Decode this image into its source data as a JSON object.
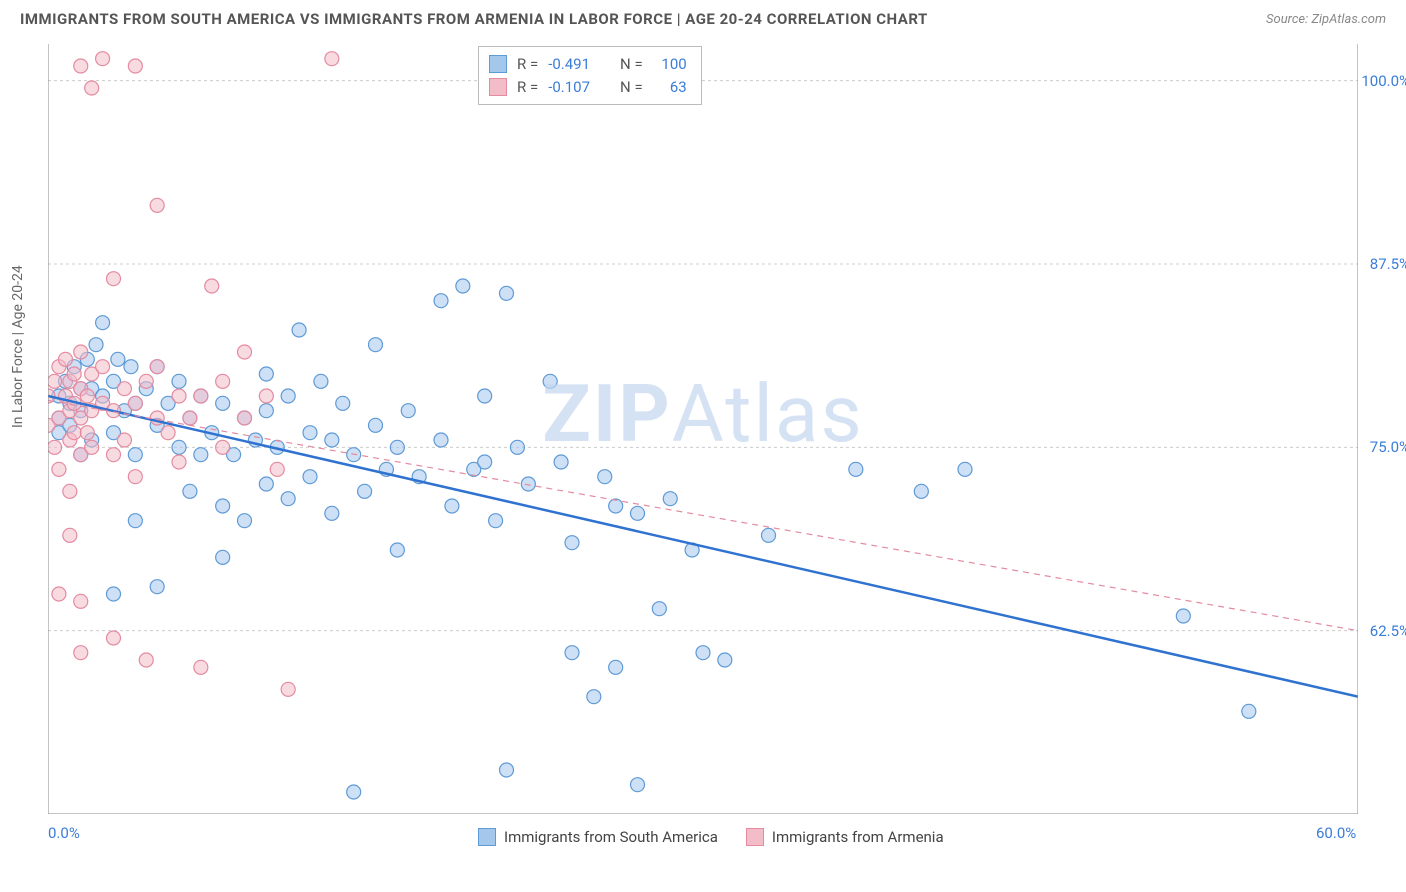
{
  "title": "IMMIGRANTS FROM SOUTH AMERICA VS IMMIGRANTS FROM ARMENIA IN LABOR FORCE | AGE 20-24 CORRELATION CHART",
  "source_label": "Source:",
  "source_value": "ZipAtlas.com",
  "y_axis_label": "In Labor Force | Age 20-24",
  "watermark_prefix": "ZIP",
  "watermark_suffix": "Atlas",
  "chart": {
    "type": "scatter",
    "xlim": [
      0,
      60
    ],
    "ylim": [
      50,
      102.5
    ],
    "x_ticks": [
      {
        "v": 0,
        "label": "0.0%"
      },
      {
        "v": 60,
        "label": "60.0%"
      }
    ],
    "y_ticks": [
      {
        "v": 62.5,
        "label": "62.5%"
      },
      {
        "v": 75,
        "label": "75.0%"
      },
      {
        "v": 87.5,
        "label": "87.5%"
      },
      {
        "v": 100,
        "label": "100.0%"
      }
    ],
    "x_minor_ticks": [
      5,
      10,
      15,
      20,
      25,
      30,
      35,
      40,
      45,
      50,
      55
    ],
    "grid_color": "#cccccc",
    "axis_color": "#888888",
    "background_color": "#ffffff",
    "marker_radius": 7,
    "marker_stroke_width": 1.2,
    "trend_line_width_solid": 2.5,
    "trend_line_width_dashed": 1.2,
    "series": [
      {
        "name": "Immigrants from South America",
        "color_fill": "#a6c7ec",
        "color_stroke": "#5e9ad6",
        "fill_opacity": 0.55,
        "R": "-0.491",
        "N": "100",
        "trend": {
          "x1": 0,
          "y1": 78.5,
          "x2": 60,
          "y2": 58,
          "style": "solid",
          "color": "#2f72d0"
        },
        "points": [
          [
            0.5,
            78.5
          ],
          [
            0.5,
            77
          ],
          [
            0.5,
            76
          ],
          [
            0.8,
            79.5
          ],
          [
            1,
            78
          ],
          [
            1,
            76.5
          ],
          [
            1.2,
            80.5
          ],
          [
            1.5,
            79
          ],
          [
            1.5,
            77.5
          ],
          [
            1.5,
            74.5
          ],
          [
            1.8,
            81
          ],
          [
            2,
            79
          ],
          [
            2,
            75.5
          ],
          [
            2.2,
            82
          ],
          [
            2.5,
            78.5
          ],
          [
            2.5,
            83.5
          ],
          [
            3,
            79.5
          ],
          [
            3,
            76
          ],
          [
            3,
            65
          ],
          [
            3.2,
            81
          ],
          [
            3.5,
            77.5
          ],
          [
            3.8,
            80.5
          ],
          [
            4,
            78
          ],
          [
            4,
            74.5
          ],
          [
            4,
            70
          ],
          [
            4.5,
            79
          ],
          [
            5,
            76.5
          ],
          [
            5,
            80.5
          ],
          [
            5,
            65.5
          ],
          [
            5.5,
            78
          ],
          [
            6,
            79.5
          ],
          [
            6,
            75
          ],
          [
            6.5,
            77
          ],
          [
            6.5,
            72
          ],
          [
            7,
            78.5
          ],
          [
            7,
            74.5
          ],
          [
            7.5,
            76
          ],
          [
            8,
            78
          ],
          [
            8,
            71
          ],
          [
            8,
            67.5
          ],
          [
            8.5,
            74.5
          ],
          [
            9,
            77
          ],
          [
            9,
            70
          ],
          [
            9.5,
            75.5
          ],
          [
            10,
            77.5
          ],
          [
            10,
            72.5
          ],
          [
            10,
            80
          ],
          [
            10.5,
            75
          ],
          [
            11,
            78.5
          ],
          [
            11,
            71.5
          ],
          [
            11.5,
            83
          ],
          [
            12,
            76
          ],
          [
            12,
            73
          ],
          [
            12.5,
            79.5
          ],
          [
            13,
            75.5
          ],
          [
            13,
            70.5
          ],
          [
            13.5,
            78
          ],
          [
            14,
            74.5
          ],
          [
            14,
            51.5
          ],
          [
            14.5,
            72
          ],
          [
            15,
            76.5
          ],
          [
            15,
            82
          ],
          [
            15.5,
            73.5
          ],
          [
            16,
            75
          ],
          [
            16,
            68
          ],
          [
            16.5,
            77.5
          ],
          [
            17,
            73
          ],
          [
            18,
            85
          ],
          [
            18,
            75.5
          ],
          [
            18.5,
            71
          ],
          [
            19,
            86
          ],
          [
            19.5,
            73.5
          ],
          [
            20,
            78.5
          ],
          [
            20,
            74
          ],
          [
            20.5,
            70
          ],
          [
            21,
            85.5
          ],
          [
            21,
            53
          ],
          [
            21.5,
            75
          ],
          [
            22,
            72.5
          ],
          [
            23,
            79.5
          ],
          [
            23.5,
            74
          ],
          [
            24,
            68.5
          ],
          [
            24,
            61
          ],
          [
            25,
            58
          ],
          [
            25.5,
            73
          ],
          [
            26,
            71
          ],
          [
            26,
            60
          ],
          [
            27,
            70.5
          ],
          [
            27,
            52
          ],
          [
            28,
            64
          ],
          [
            28.5,
            71.5
          ],
          [
            29.5,
            68
          ],
          [
            30,
            61
          ],
          [
            31,
            60.5
          ],
          [
            33,
            69
          ],
          [
            37,
            73.5
          ],
          [
            40,
            72
          ],
          [
            42,
            73.5
          ],
          [
            52,
            63.5
          ],
          [
            55,
            57
          ]
        ]
      },
      {
        "name": "Immigrants from Armenia",
        "color_fill": "#f2bcc8",
        "color_stroke": "#e48ba0",
        "fill_opacity": 0.55,
        "R": "-0.107",
        "N": "63",
        "trend": {
          "x1": 0,
          "y1": 78.2,
          "x2": 60,
          "y2": 62.5,
          "style": "dashed",
          "color": "#e48ba0"
        },
        "points": [
          [
            0,
            78.5
          ],
          [
            0,
            76.5
          ],
          [
            0.3,
            79.5
          ],
          [
            0.3,
            75
          ],
          [
            0.5,
            80.5
          ],
          [
            0.5,
            77
          ],
          [
            0.5,
            73.5
          ],
          [
            0.5,
            65
          ],
          [
            0.8,
            78.5
          ],
          [
            0.8,
            81
          ],
          [
            1,
            77.5
          ],
          [
            1,
            79.5
          ],
          [
            1,
            75.5
          ],
          [
            1,
            72
          ],
          [
            1,
            69
          ],
          [
            1.2,
            80
          ],
          [
            1.2,
            78
          ],
          [
            1.2,
            76
          ],
          [
            1.5,
            81.5
          ],
          [
            1.5,
            79
          ],
          [
            1.5,
            77
          ],
          [
            1.5,
            74.5
          ],
          [
            1.5,
            64.5
          ],
          [
            1.5,
            61
          ],
          [
            1.5,
            101
          ],
          [
            1.8,
            78.5
          ],
          [
            1.8,
            76
          ],
          [
            2,
            80
          ],
          [
            2,
            77.5
          ],
          [
            2,
            75
          ],
          [
            2,
            99.5
          ],
          [
            2.5,
            78
          ],
          [
            2.5,
            80.5
          ],
          [
            2.5,
            101.5
          ],
          [
            3,
            77.5
          ],
          [
            3,
            74.5
          ],
          [
            3,
            86.5
          ],
          [
            3,
            62
          ],
          [
            3.5,
            79
          ],
          [
            3.5,
            75.5
          ],
          [
            4,
            78
          ],
          [
            4,
            73
          ],
          [
            4,
            101
          ],
          [
            4.5,
            79.5
          ],
          [
            4.5,
            60.5
          ],
          [
            5,
            77
          ],
          [
            5,
            80.5
          ],
          [
            5,
            91.5
          ],
          [
            5.5,
            76
          ],
          [
            6,
            78.5
          ],
          [
            6,
            74
          ],
          [
            6.5,
            77
          ],
          [
            7,
            78.5
          ],
          [
            7,
            60
          ],
          [
            7.5,
            86
          ],
          [
            8,
            79.5
          ],
          [
            8,
            75
          ],
          [
            9,
            77
          ],
          [
            9,
            81.5
          ],
          [
            10,
            78.5
          ],
          [
            10.5,
            73.5
          ],
          [
            11,
            58.5
          ],
          [
            13,
            101.5
          ]
        ]
      }
    ]
  }
}
